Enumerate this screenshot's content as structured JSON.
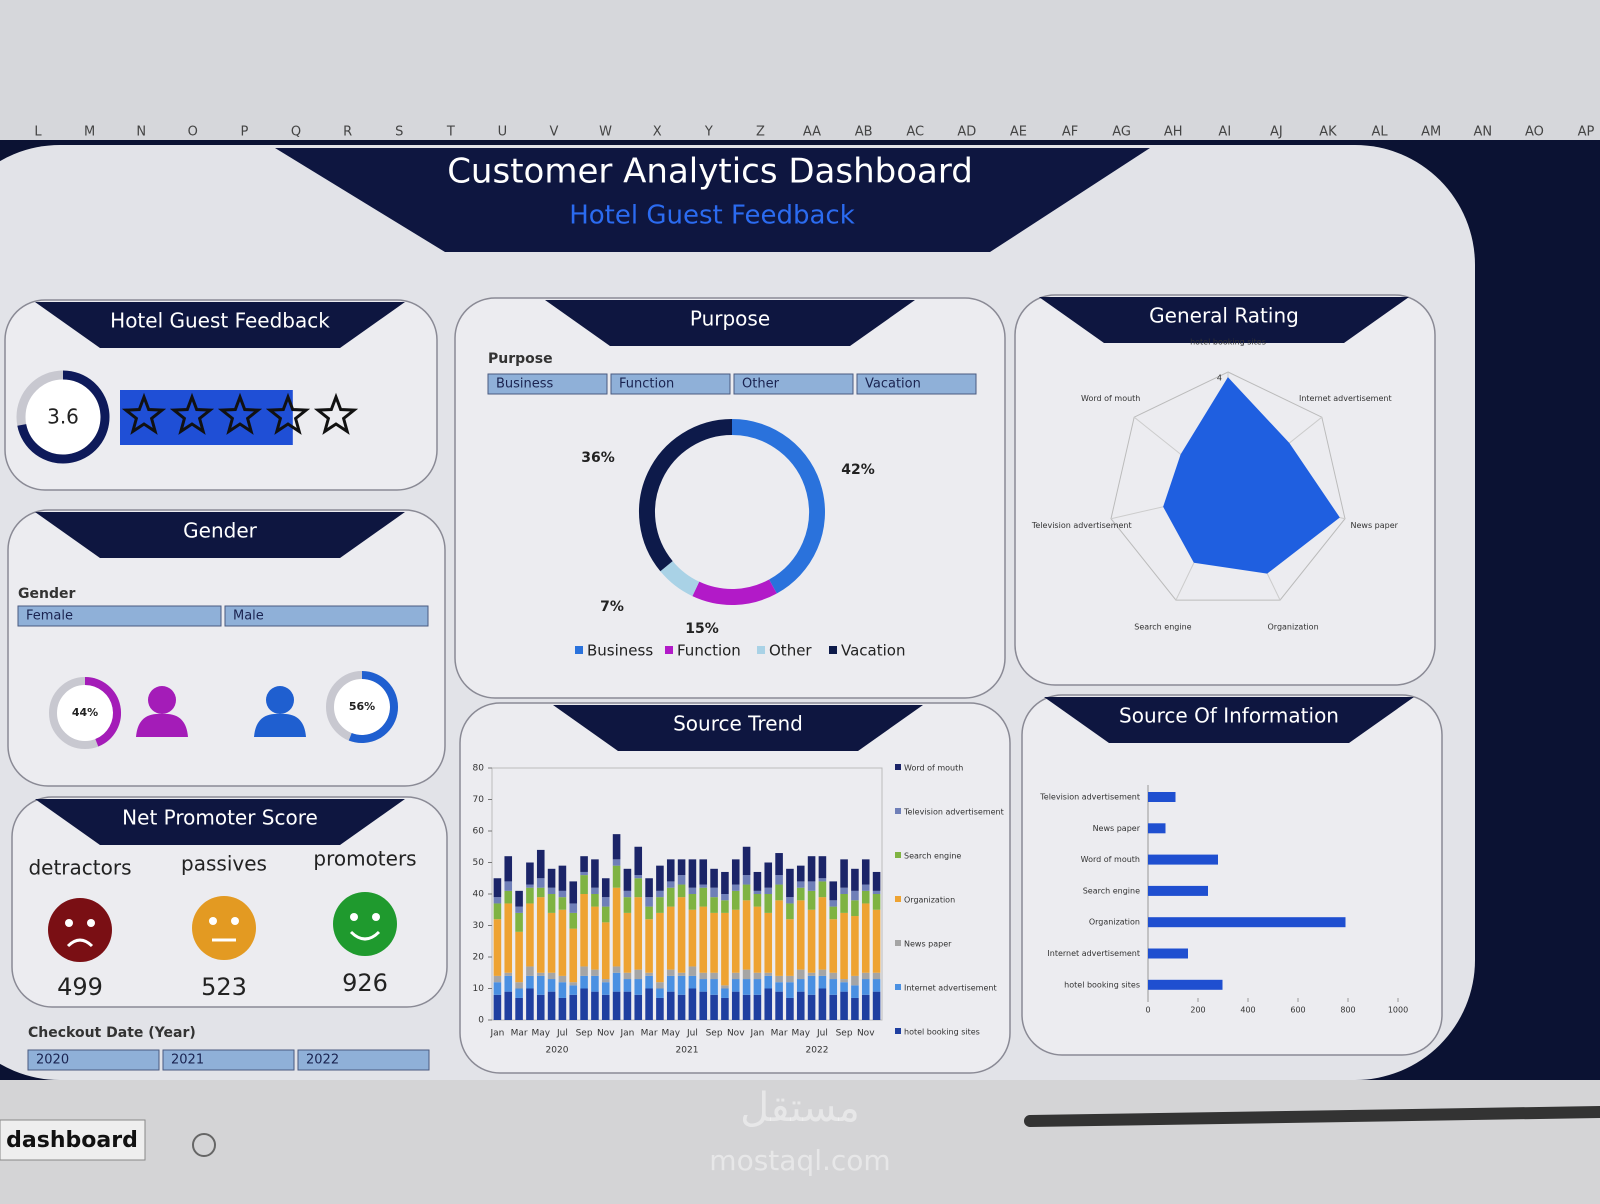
{
  "spreadsheet": {
    "columns": [
      "L",
      "M",
      "N",
      "O",
      "P",
      "Q",
      "R",
      "S",
      "T",
      "U",
      "V",
      "W",
      "X",
      "Y",
      "Z",
      "AA",
      "AB",
      "AC",
      "AD",
      "AE",
      "AF",
      "AG",
      "AH",
      "AI",
      "AJ",
      "AK",
      "AL",
      "AM",
      "AN",
      "AO",
      "AP"
    ],
    "sheet_tab": "dashboard",
    "watermark": [
      "مستقل",
      "mostaql.com"
    ]
  },
  "header": {
    "title": "Customer Analytics Dashboard",
    "subtitle": "Hotel Guest Feedback"
  },
  "rating_panel": {
    "title": "Hotel Guest Feedback",
    "rating": 3.6,
    "max_stars": 5,
    "color": "#1f4fd6"
  },
  "purpose_slicer": {
    "label": "Purpose",
    "items": [
      "Business",
      "Function",
      "Other",
      "Vacation"
    ]
  },
  "gender": {
    "title": "Gender",
    "slicer": {
      "label": "Gender",
      "items": [
        "Female",
        "Male"
      ]
    },
    "values": [
      44,
      56
    ],
    "value_labels": [
      "44%",
      "56%"
    ],
    "colors": [
      "#a41cb8",
      "#1f5fd0"
    ]
  },
  "nps": {
    "title": "Net Promoter Score",
    "categories": [
      "detractors",
      "passives",
      "promoters"
    ],
    "values": [
      499,
      523,
      926
    ],
    "colors": [
      "#7a0f14",
      "#e39a22",
      "#1f9a2e"
    ]
  },
  "checkout_slicer": {
    "label": "Checkout Date (Year)",
    "items": [
      "2020",
      "2021",
      "2022"
    ]
  },
  "chart_data": [
    {
      "type": "pie",
      "donut": true,
      "title": "Purpose",
      "categories": [
        "Business",
        "Function",
        "Other",
        "Vacation"
      ],
      "values": [
        42,
        15,
        7,
        36
      ],
      "value_labels": [
        "42%",
        "15%",
        "7%",
        "36%"
      ],
      "colors": [
        "#2a72dc",
        "#b21ac8",
        "#a9d2e6",
        "#0d1a4a"
      ]
    },
    {
      "type": "radar",
      "title": "General Rating",
      "categories": [
        "hotel booking sites",
        "Internet advertisement",
        "News paper",
        "Organization",
        "Search engine",
        "Television advertisement",
        "Word of mouth"
      ],
      "values": [
        3.9,
        3.3,
        3.9,
        3.5,
        3.3,
        3.1,
        3.0
      ],
      "rlim": [
        2,
        4
      ],
      "rticks": [
        3,
        4
      ],
      "color": "#1f5fe0"
    },
    {
      "type": "stacked_bar",
      "title": "Source Trend",
      "categories": [
        "Jan",
        null,
        "Mar",
        null,
        "May",
        null,
        "Jul",
        null,
        "Sep",
        null,
        "Nov",
        null,
        "Jan",
        null,
        "Mar",
        null,
        "May",
        null,
        "Jul",
        null,
        "Sep",
        null,
        "Nov",
        null,
        "Jan",
        null,
        "Mar",
        null,
        "May",
        null,
        "Jul",
        null,
        "Sep",
        null,
        "Nov",
        null
      ],
      "groups": [
        "2020",
        "2021",
        "2022"
      ],
      "ylim": [
        0,
        80
      ],
      "yticks": [
        0,
        10,
        20,
        30,
        40,
        50,
        60,
        70,
        80
      ],
      "series": [
        {
          "name": "Word of mouth",
          "color": "#1b2468",
          "values": [
            6,
            8,
            5,
            7,
            9,
            6,
            8,
            7,
            5,
            9,
            6,
            8,
            7,
            9,
            6,
            8,
            7,
            5,
            9,
            8,
            6,
            7,
            8,
            9,
            6,
            8,
            7,
            9,
            5,
            8,
            7,
            6,
            9,
            7,
            8,
            6
          ]
        },
        {
          "name": "Television advertisement",
          "color": "#6f7fb8",
          "values": [
            2,
            3,
            2,
            1,
            3,
            2,
            2,
            3,
            1,
            2,
            3,
            2,
            2,
            1,
            3,
            2,
            2,
            3,
            2,
            1,
            3,
            2,
            2,
            3,
            1,
            2,
            3,
            2,
            2,
            3,
            1,
            2,
            2,
            3,
            2,
            1
          ]
        },
        {
          "name": "Search engine",
          "color": "#7fb342",
          "values": [
            5,
            4,
            6,
            5,
            3,
            6,
            4,
            5,
            6,
            4,
            5,
            7,
            5,
            6,
            4,
            5,
            6,
            4,
            5,
            6,
            5,
            4,
            6,
            5,
            4,
            6,
            5,
            5,
            4,
            6,
            5,
            4,
            6,
            5,
            4,
            5
          ]
        },
        {
          "name": "Organization",
          "color": "#eea332",
          "values": [
            18,
            22,
            16,
            20,
            24,
            19,
            21,
            17,
            23,
            20,
            18,
            25,
            19,
            23,
            17,
            22,
            20,
            24,
            18,
            21,
            19,
            23,
            20,
            22,
            21,
            19,
            24,
            18,
            22,
            20,
            23,
            17,
            21,
            19,
            22,
            20
          ]
        },
        {
          "name": "News paper",
          "color": "#a5a5a5",
          "values": [
            2,
            1,
            2,
            3,
            1,
            2,
            2,
            1,
            3,
            2,
            1,
            2,
            2,
            3,
            1,
            2,
            2,
            1,
            3,
            2,
            2,
            1,
            2,
            3,
            2,
            1,
            2,
            2,
            3,
            1,
            2,
            2,
            1,
            3,
            2,
            2
          ]
        },
        {
          "name": "Internet advertisement",
          "color": "#4a90e2",
          "values": [
            4,
            5,
            3,
            4,
            6,
            4,
            5,
            3,
            4,
            5,
            4,
            6,
            4,
            5,
            4,
            3,
            5,
            6,
            4,
            4,
            5,
            3,
            4,
            5,
            5,
            4,
            3,
            5,
            4,
            6,
            4,
            5,
            3,
            4,
            5,
            4
          ]
        },
        {
          "name": "hotel booking sites",
          "color": "#1f3fa0",
          "values": [
            8,
            9,
            7,
            10,
            8,
            9,
            7,
            8,
            10,
            9,
            8,
            9,
            9,
            8,
            10,
            7,
            9,
            8,
            10,
            9,
            8,
            7,
            9,
            8,
            8,
            10,
            9,
            7,
            9,
            8,
            10,
            8,
            9,
            7,
            8,
            9
          ]
        }
      ]
    },
    {
      "type": "bar",
      "orientation": "horizontal",
      "title": "Source Of Information",
      "categories": [
        "Television advertisement",
        "News paper",
        "Word of mouth",
        "Search engine",
        "Organization",
        "Internet advertisement",
        "hotel booking sites"
      ],
      "values": [
        110,
        70,
        280,
        240,
        790,
        160,
        298
      ],
      "xlim": [
        0,
        1000
      ],
      "xticks": [
        0,
        200,
        400,
        600,
        800,
        1000
      ],
      "color": "#1f4fd0"
    }
  ]
}
